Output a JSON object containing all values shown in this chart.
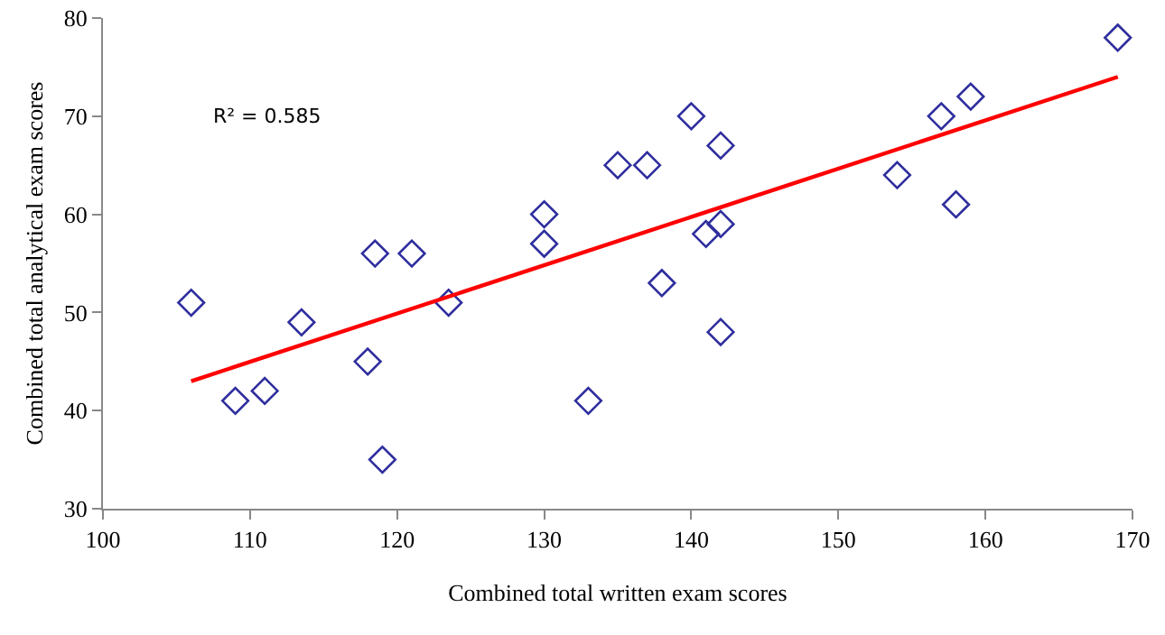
{
  "chart_data": {
    "type": "scatter",
    "xlabel": "Combined total written exam scores",
    "ylabel": "Combined total analytical exam scores",
    "xlim": [
      100,
      170
    ],
    "xticks": [
      100,
      110,
      120,
      130,
      140,
      150,
      160,
      170
    ],
    "ylim": [
      30,
      80
    ],
    "yticks": [
      30,
      40,
      50,
      60,
      70,
      80
    ],
    "grid": false,
    "marker": "diamond",
    "annotations": [
      "R² = 0.585"
    ],
    "series": [
      {
        "color": "#2e2e9e",
        "x": [
          106,
          109,
          111,
          113.5,
          118,
          118.5,
          119,
          121,
          123.5,
          130,
          130,
          133,
          135,
          137,
          138,
          140,
          141,
          142,
          142,
          142,
          154,
          157,
          158,
          159,
          169
        ],
        "values": [
          51,
          41,
          42,
          49,
          45,
          56,
          35,
          56,
          51,
          60,
          57,
          41,
          65,
          65,
          53,
          70,
          58,
          59,
          67,
          48,
          64,
          70,
          61,
          72,
          78
        ]
      },
      {
        "type": "line",
        "marker": "none",
        "color": "#ff0000",
        "x": [
          106,
          169
        ],
        "values": [
          43,
          74
        ]
      }
    ]
  }
}
